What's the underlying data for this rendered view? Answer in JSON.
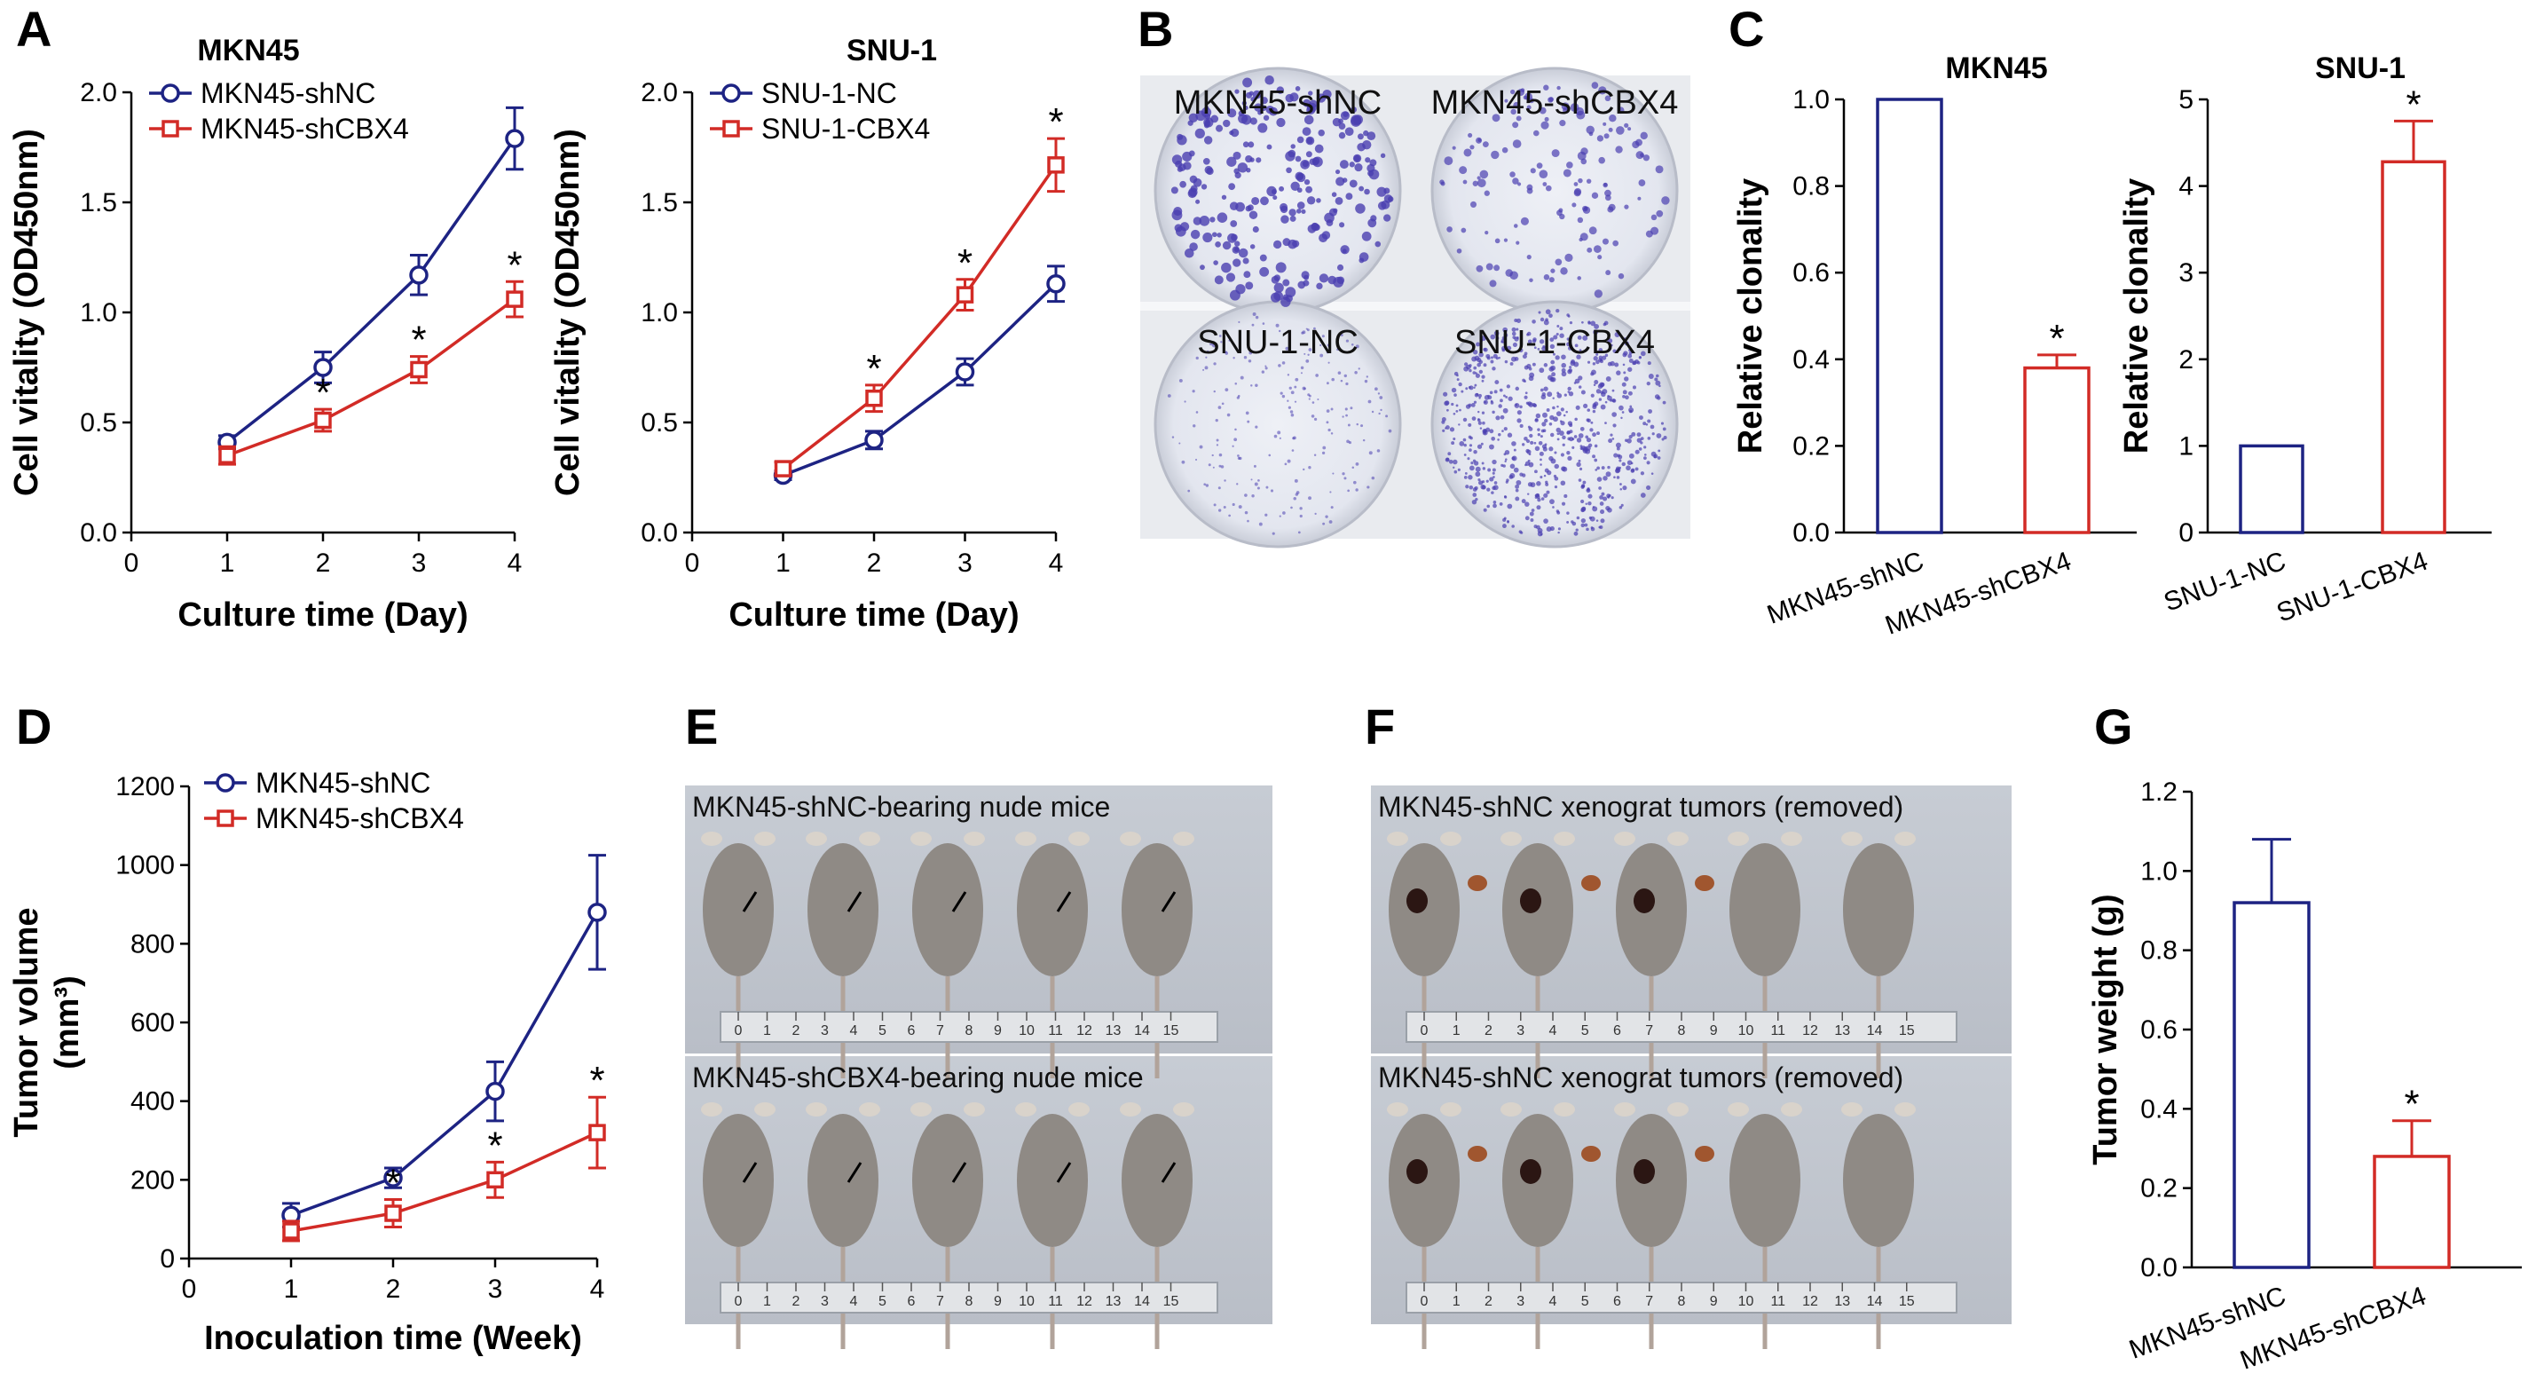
{
  "panel_letters": {
    "A": "A",
    "B": "B",
    "C": "C",
    "D": "D",
    "E": "E",
    "F": "F",
    "G": "G"
  },
  "colors": {
    "blue": "#1d2383",
    "red": "#d22b26",
    "axis": "#000000"
  },
  "chart_data": [
    {
      "id": "A1",
      "type": "line",
      "title": "MKN45",
      "xlabel": "Culture time (Day)",
      "ylabel": "Cell vitality (OD450nm)",
      "xlim": [
        0,
        4
      ],
      "ylim": [
        0,
        2.0
      ],
      "xticks": [
        0,
        1,
        2,
        3,
        4
      ],
      "yticks": [
        0.0,
        0.5,
        1.0,
        1.5,
        2.0
      ],
      "ytick_labels": [
        "0.0",
        "0.5",
        "1.0",
        "1.5",
        "2.0"
      ],
      "legend_position": "top-left",
      "series": [
        {
          "name": "MKN45-shNC",
          "color": "#1d2383",
          "marker": "circle",
          "x": [
            1,
            2,
            3,
            4
          ],
          "y": [
            0.41,
            0.75,
            1.17,
            1.79
          ],
          "err": [
            0.03,
            0.07,
            0.09,
            0.14
          ],
          "stars": [
            false,
            false,
            false,
            false
          ]
        },
        {
          "name": "MKN45-shCBX4",
          "color": "#d22b26",
          "marker": "square",
          "x": [
            1,
            2,
            3,
            4
          ],
          "y": [
            0.35,
            0.51,
            0.74,
            1.06
          ],
          "err": [
            0.04,
            0.05,
            0.06,
            0.08
          ],
          "stars": [
            false,
            true,
            true,
            true
          ]
        }
      ]
    },
    {
      "id": "A2",
      "type": "line",
      "title": "SNU-1",
      "xlabel": "Culture time (Day)",
      "ylabel": "Cell vitality (OD450nm)",
      "xlim": [
        0,
        4
      ],
      "ylim": [
        0,
        2.0
      ],
      "xticks": [
        0,
        1,
        2,
        3,
        4
      ],
      "yticks": [
        0.0,
        0.5,
        1.0,
        1.5,
        2.0
      ],
      "ytick_labels": [
        "0.0",
        "0.5",
        "1.0",
        "1.5",
        "2.0"
      ],
      "legend_position": "top-left",
      "series": [
        {
          "name": "SNU-1-NC",
          "color": "#1d2383",
          "marker": "circle",
          "x": [
            1,
            2,
            3,
            4
          ],
          "y": [
            0.26,
            0.42,
            0.73,
            1.13
          ],
          "err": [
            0.02,
            0.04,
            0.06,
            0.08
          ],
          "stars": [
            false,
            false,
            false,
            false
          ]
        },
        {
          "name": "SNU-1-CBX4",
          "color": "#d22b26",
          "marker": "square",
          "x": [
            1,
            2,
            3,
            4
          ],
          "y": [
            0.29,
            0.61,
            1.08,
            1.67
          ],
          "err": [
            0.03,
            0.06,
            0.07,
            0.12
          ],
          "stars": [
            false,
            true,
            true,
            true
          ]
        }
      ]
    },
    {
      "id": "C1",
      "type": "bar",
      "title": "MKN45",
      "ylabel": "Relative clonality",
      "categories": [
        "MKN45-shNC",
        "MKN45-shCBX4"
      ],
      "values": [
        1.0,
        0.38
      ],
      "err": [
        0,
        0.03
      ],
      "stars": [
        false,
        true
      ],
      "colors": [
        "#1d2383",
        "#d22b26"
      ],
      "ylim": [
        0,
        1.0
      ],
      "yticks": [
        0.0,
        0.2,
        0.4,
        0.6,
        0.8,
        1.0
      ],
      "ytick_labels": [
        "0.0",
        "0.2",
        "0.4",
        "0.6",
        "0.8",
        "1.0"
      ]
    },
    {
      "id": "C2",
      "type": "bar",
      "title": "SNU-1",
      "ylabel": "Relative clonality",
      "categories": [
        "SNU-1-NC",
        "SNU-1-CBX4"
      ],
      "values": [
        1.0,
        4.28
      ],
      "err": [
        0,
        0.47
      ],
      "stars": [
        false,
        true
      ],
      "colors": [
        "#1d2383",
        "#d22b26"
      ],
      "ylim": [
        0,
        5
      ],
      "yticks": [
        0,
        1,
        2,
        3,
        4,
        5
      ],
      "ytick_labels": [
        "0",
        "1",
        "2",
        "3",
        "4",
        "5"
      ]
    },
    {
      "id": "D",
      "type": "line",
      "title": "",
      "xlabel": "Inoculation time (Week)",
      "ylabel": "Tumor volume",
      "ylabel_unit": "(mm³)",
      "xlim": [
        0,
        4
      ],
      "ylim": [
        0,
        1200
      ],
      "xticks": [
        0,
        1,
        2,
        3,
        4
      ],
      "yticks": [
        0,
        200,
        400,
        600,
        800,
        1000,
        1200
      ],
      "ytick_labels": [
        "0",
        "200",
        "400",
        "600",
        "800",
        "1000",
        "1200"
      ],
      "legend_position": "top-left",
      "series": [
        {
          "name": "MKN45-shNC",
          "color": "#1d2383",
          "marker": "circle",
          "x": [
            1,
            2,
            3,
            4
          ],
          "y": [
            110,
            205,
            425,
            880
          ],
          "err": [
            30,
            25,
            75,
            145
          ],
          "stars": [
            false,
            false,
            false,
            false
          ]
        },
        {
          "name": "MKN45-shCBX4",
          "color": "#d22b26",
          "marker": "square",
          "x": [
            1,
            2,
            3,
            4
          ],
          "y": [
            70,
            115,
            200,
            320
          ],
          "err": [
            25,
            35,
            45,
            90
          ],
          "stars": [
            false,
            true,
            true,
            true
          ]
        }
      ]
    },
    {
      "id": "G",
      "type": "bar",
      "title": "",
      "ylabel": "Tumor weight (g)",
      "categories": [
        "MKN45-shNC",
        "MKN45-shCBX4"
      ],
      "values": [
        0.92,
        0.28
      ],
      "err": [
        0.16,
        0.09
      ],
      "stars": [
        false,
        true
      ],
      "colors": [
        "#1d2383",
        "#d22b26"
      ],
      "ylim": [
        0,
        1.2
      ],
      "yticks": [
        0.0,
        0.2,
        0.4,
        0.6,
        0.8,
        1.0,
        1.2
      ],
      "ytick_labels": [
        "0.0",
        "0.2",
        "0.4",
        "0.6",
        "0.8",
        "1.0",
        "1.2"
      ]
    }
  ],
  "star_symbol": "*",
  "plates": {
    "top_left": "MKN45-shNC",
    "top_right": "MKN45-shCBX4",
    "bottom_left": "SNU-1-NC",
    "bottom_right": "SNU-1-CBX4"
  },
  "photo_E": {
    "top_caption": "MKN45-shNC-bearing nude mice",
    "bottom_caption": "MKN45-shCBX4-bearing nude mice"
  },
  "photo_F": {
    "top_caption": "MKN45-shNC xenograt tumors (removed)",
    "bottom_caption": "MKN45-shNC xenograt tumors (removed)"
  }
}
